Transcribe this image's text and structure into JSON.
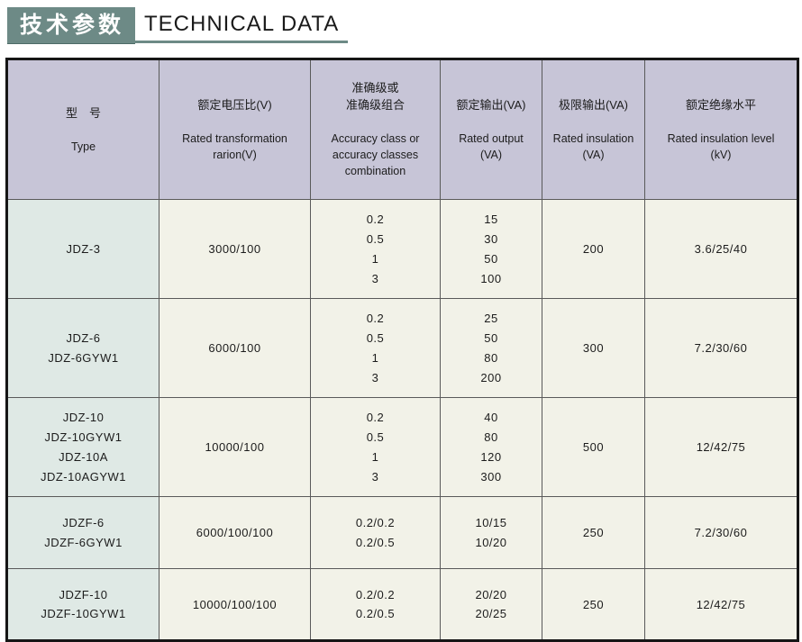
{
  "header": {
    "title_cn": "技术参数",
    "title_en": "TECHNICAL DATA"
  },
  "colors": {
    "title_box_bg": "#6d8a86",
    "title_underline": "#6d8a86",
    "table_header_bg": "#c7c5d7",
    "type_column_bg": "#dfe9e5",
    "data_cell_bg": "#f2f2e8",
    "outer_border": "#161616"
  },
  "table": {
    "columns": [
      {
        "cn": "型　号",
        "en": "Type"
      },
      {
        "cn": "额定电压比(V)",
        "en": "Rated transformation\nrarion(V)"
      },
      {
        "cn": "准确级或\n准确级组合",
        "en": "Accuracy class or\naccuracy classes\ncombination"
      },
      {
        "cn": "额定输出(VA)",
        "en": "Rated output\n(VA)"
      },
      {
        "cn": "极限输出(VA)",
        "en": "Rated insulation\n(VA)"
      },
      {
        "cn": "额定绝缘水平",
        "en": "Rated insulation level\n(kV)"
      }
    ],
    "rows": [
      {
        "cells": [
          "JDZ-3",
          "3000/100",
          "0.2\n0.5\n1\n3",
          "15\n30\n50\n100",
          "200",
          "3.6/25/40"
        ]
      },
      {
        "cells": [
          "JDZ-6\nJDZ-6GYW1",
          "6000/100",
          "0.2\n0.5\n1\n3",
          "25\n50\n80\n200",
          "300",
          "7.2/30/60"
        ]
      },
      {
        "cells": [
          "JDZ-10\nJDZ-10GYW1\nJDZ-10A\nJDZ-10AGYW1",
          "10000/100",
          "0.2\n0.5\n1\n3",
          "40\n80\n120\n300",
          "500",
          "12/42/75"
        ]
      },
      {
        "cells": [
          "JDZF-6\nJDZF-6GYW1",
          "6000/100/100",
          "0.2/0.2\n0.2/0.5",
          "10/15\n10/20",
          "250",
          "7.2/30/60"
        ]
      },
      {
        "cells": [
          "JDZF-10\nJDZF-10GYW1",
          "10000/100/100",
          "0.2/0.2\n0.2/0.5",
          "20/20\n20/25",
          "250",
          "12/42/75"
        ]
      }
    ]
  }
}
